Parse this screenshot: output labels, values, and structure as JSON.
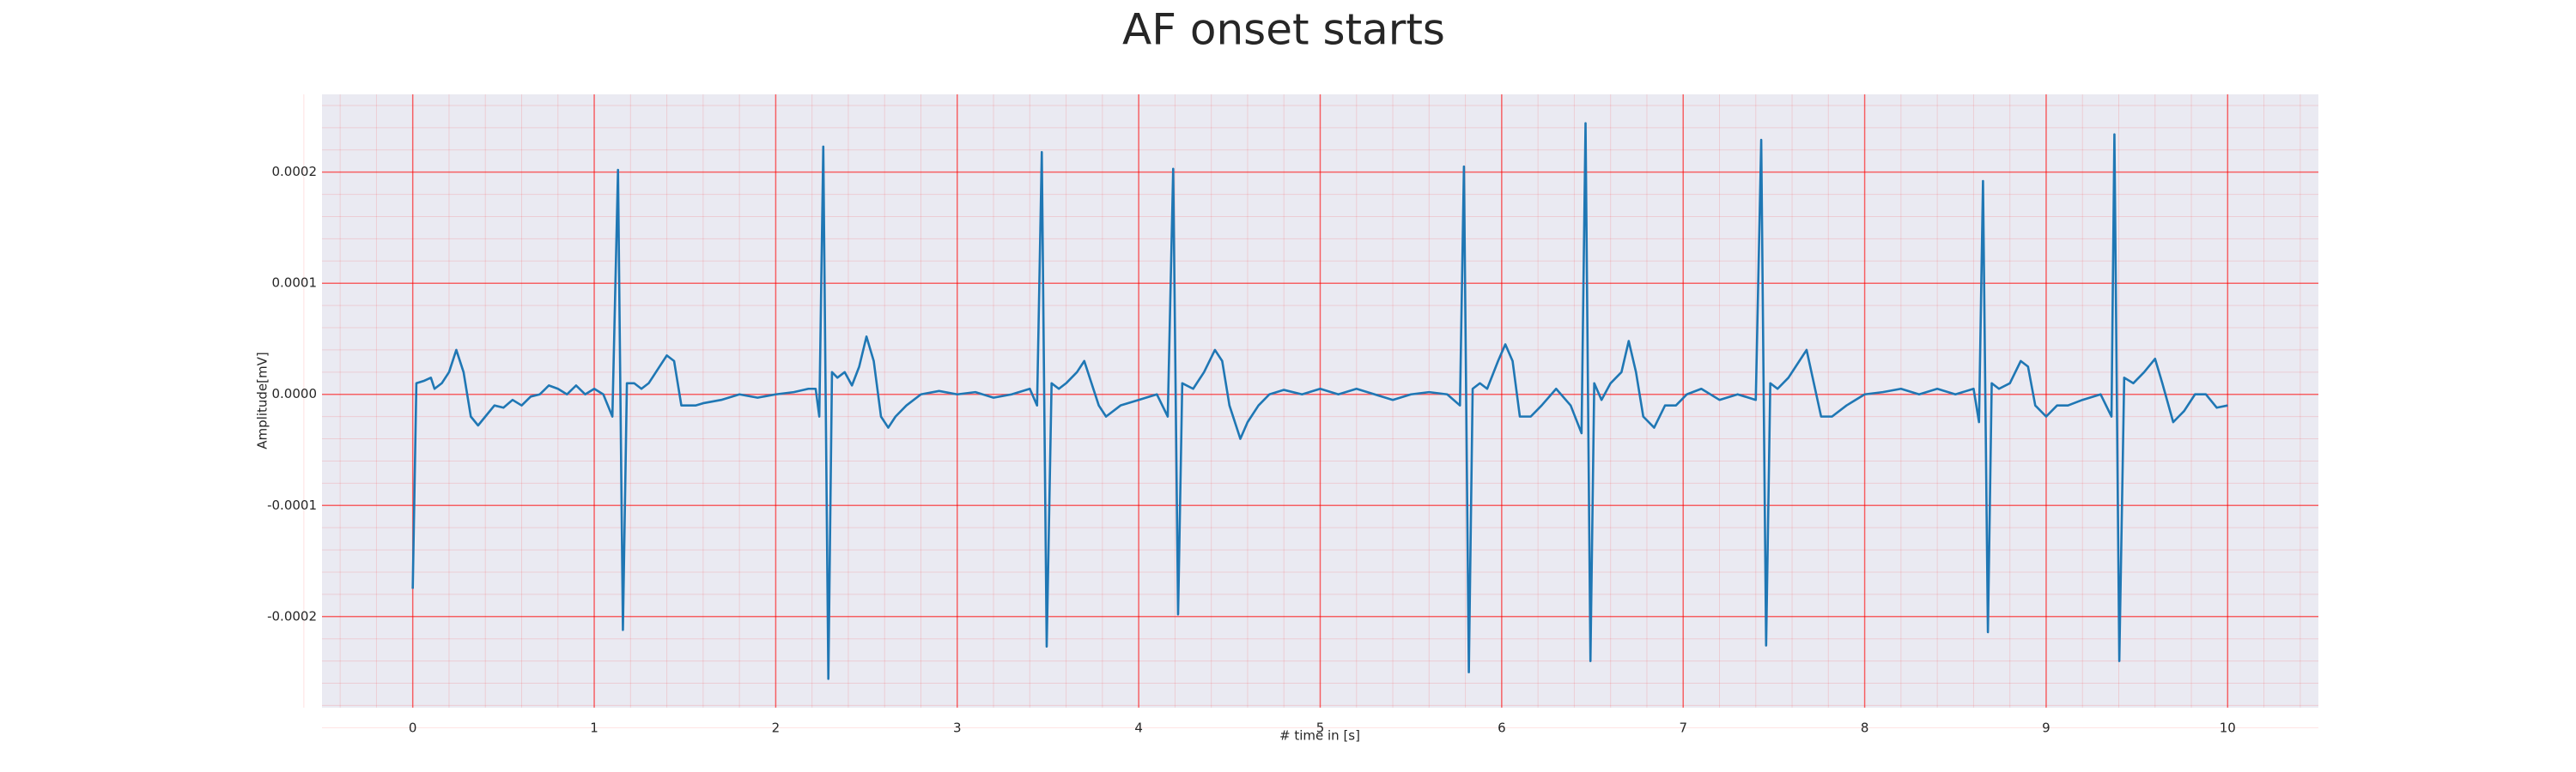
{
  "chart_data": {
    "type": "line",
    "title": "AF onset starts",
    "x_label": "# time in [s]",
    "y_label": "Amplitude[mV]",
    "color": "#1f77b4",
    "grid": true,
    "minor_grid": true,
    "grid_color": "#ff0000",
    "xlim": [
      -0.5,
      10.5
    ],
    "xticks": [
      0,
      1,
      2,
      3,
      4,
      5,
      6,
      7,
      8,
      9,
      10
    ],
    "ylim": [
      -0.000282,
      0.00027
    ],
    "yticks": [
      -0.0002,
      -0.0001,
      {
        "value": 0,
        "label": "0.0000"
      },
      0.0001,
      0.0002
    ],
    "x": [
      0,
      0.02,
      0.06,
      0.1,
      0.12,
      0.16,
      0.2,
      0.24,
      0.28,
      0.32,
      0.36,
      0.4,
      0.45,
      0.5,
      0.55,
      0.6,
      0.65,
      0.7,
      0.75,
      0.8,
      0.85,
      0.9,
      0.95,
      1.0,
      1.05,
      1.1,
      1.131,
      1.158,
      1.18,
      1.22,
      1.26,
      1.3,
      1.36,
      1.4,
      1.44,
      1.48,
      1.52,
      1.56,
      1.6,
      1.7,
      1.8,
      1.9,
      2.0,
      2.1,
      2.18,
      2.22,
      2.24,
      2.262,
      2.29,
      2.31,
      2.34,
      2.38,
      2.42,
      2.46,
      2.5,
      2.54,
      2.58,
      2.62,
      2.66,
      2.72,
      2.8,
      2.9,
      3.0,
      3.1,
      3.2,
      3.3,
      3.4,
      3.44,
      3.466,
      3.493,
      3.52,
      3.56,
      3.6,
      3.66,
      3.7,
      3.74,
      3.78,
      3.82,
      3.9,
      4.0,
      4.1,
      4.16,
      4.19,
      4.217,
      4.24,
      4.3,
      4.36,
      4.42,
      4.46,
      4.5,
      4.56,
      4.6,
      4.66,
      4.72,
      4.8,
      4.9,
      5.0,
      5.1,
      5.2,
      5.3,
      5.4,
      5.5,
      5.6,
      5.7,
      5.77,
      5.792,
      5.819,
      5.84,
      5.88,
      5.92,
      5.98,
      6.02,
      6.06,
      6.1,
      6.16,
      6.22,
      6.3,
      6.38,
      6.44,
      6.462,
      6.489,
      6.51,
      6.55,
      6.6,
      6.66,
      6.7,
      6.74,
      6.78,
      6.84,
      6.9,
      6.96,
      7.02,
      7.1,
      7.2,
      7.3,
      7.4,
      7.43,
      7.457,
      7.48,
      7.52,
      7.58,
      7.64,
      7.68,
      7.72,
      7.76,
      7.82,
      7.9,
      8.0,
      8.1,
      8.2,
      8.3,
      8.4,
      8.5,
      8.6,
      8.63,
      8.652,
      8.679,
      8.7,
      8.74,
      8.8,
      8.86,
      8.9,
      8.94,
      9.0,
      9.06,
      9.12,
      9.2,
      9.3,
      9.36,
      9.376,
      9.403,
      9.43,
      9.48,
      9.54,
      9.6,
      9.64,
      9.7,
      9.76,
      9.82,
      9.88,
      9.94,
      10.0
    ],
    "values": [
      -0.000175,
      1e-05,
      1.2e-05,
      1.5e-05,
      5e-06,
      1e-05,
      2e-05,
      4e-05,
      2e-05,
      -2e-05,
      -2.8e-05,
      -2e-05,
      -1e-05,
      -1.2e-05,
      -5e-06,
      -1e-05,
      -2e-06,
      0,
      8e-06,
      5e-06,
      0,
      8e-06,
      0,
      5e-06,
      0,
      -2e-05,
      0.000202,
      -0.000212,
      1e-05,
      1e-05,
      5e-06,
      1e-05,
      2.5e-05,
      3.5e-05,
      3e-05,
      -1e-05,
      -1e-05,
      -1e-05,
      -8e-06,
      -5e-06,
      0,
      -3e-06,
      0,
      2e-06,
      5e-06,
      5e-06,
      -2e-05,
      0.000223,
      -0.000256,
      2e-05,
      1.5e-05,
      2e-05,
      8e-06,
      2.5e-05,
      5.2e-05,
      3e-05,
      -2e-05,
      -3e-05,
      -2e-05,
      -1e-05,
      0,
      3e-06,
      0,
      2e-06,
      -3e-06,
      0,
      5e-06,
      -1e-05,
      0.000218,
      -0.000227,
      1e-05,
      5e-06,
      1e-05,
      2e-05,
      3e-05,
      1e-05,
      -1e-05,
      -2e-05,
      -1e-05,
      -5e-06,
      0,
      -2e-05,
      0.000203,
      -0.000198,
      1e-05,
      5e-06,
      2e-05,
      4e-05,
      3e-05,
      -1e-05,
      -4e-05,
      -2.5e-05,
      -1e-05,
      0,
      4e-06,
      0,
      5e-06,
      0,
      5e-06,
      0,
      -5e-06,
      0,
      2e-06,
      0,
      -1e-05,
      0.000205,
      -0.00025,
      5e-06,
      1e-05,
      5e-06,
      3e-05,
      4.5e-05,
      3e-05,
      -2e-05,
      -2e-05,
      -1e-05,
      5e-06,
      -1e-05,
      -3.5e-05,
      0.000244,
      -0.00024,
      1e-05,
      -5e-06,
      1e-05,
      2e-05,
      4.8e-05,
      2e-05,
      -2e-05,
      -3e-05,
      -1e-05,
      -1e-05,
      0,
      5e-06,
      -5e-06,
      0,
      -5e-06,
      0.000229,
      -0.000226,
      1e-05,
      5e-06,
      1.5e-05,
      3e-05,
      4e-05,
      1e-05,
      -2e-05,
      -2e-05,
      -1e-05,
      0,
      2e-06,
      5e-06,
      0,
      5e-06,
      0,
      5e-06,
      -2.5e-05,
      0.000192,
      -0.000214,
      1e-05,
      5e-06,
      1e-05,
      3e-05,
      2.5e-05,
      -1e-05,
      -2e-05,
      -1e-05,
      -1e-05,
      -5e-06,
      0,
      -2e-05,
      0.000234,
      -0.00024,
      1.5e-05,
      1e-05,
      2e-05,
      3.2e-05,
      1e-05,
      -2.5e-05,
      -1.5e-05,
      0,
      0,
      -1.2e-05,
      -1e-05
    ]
  }
}
